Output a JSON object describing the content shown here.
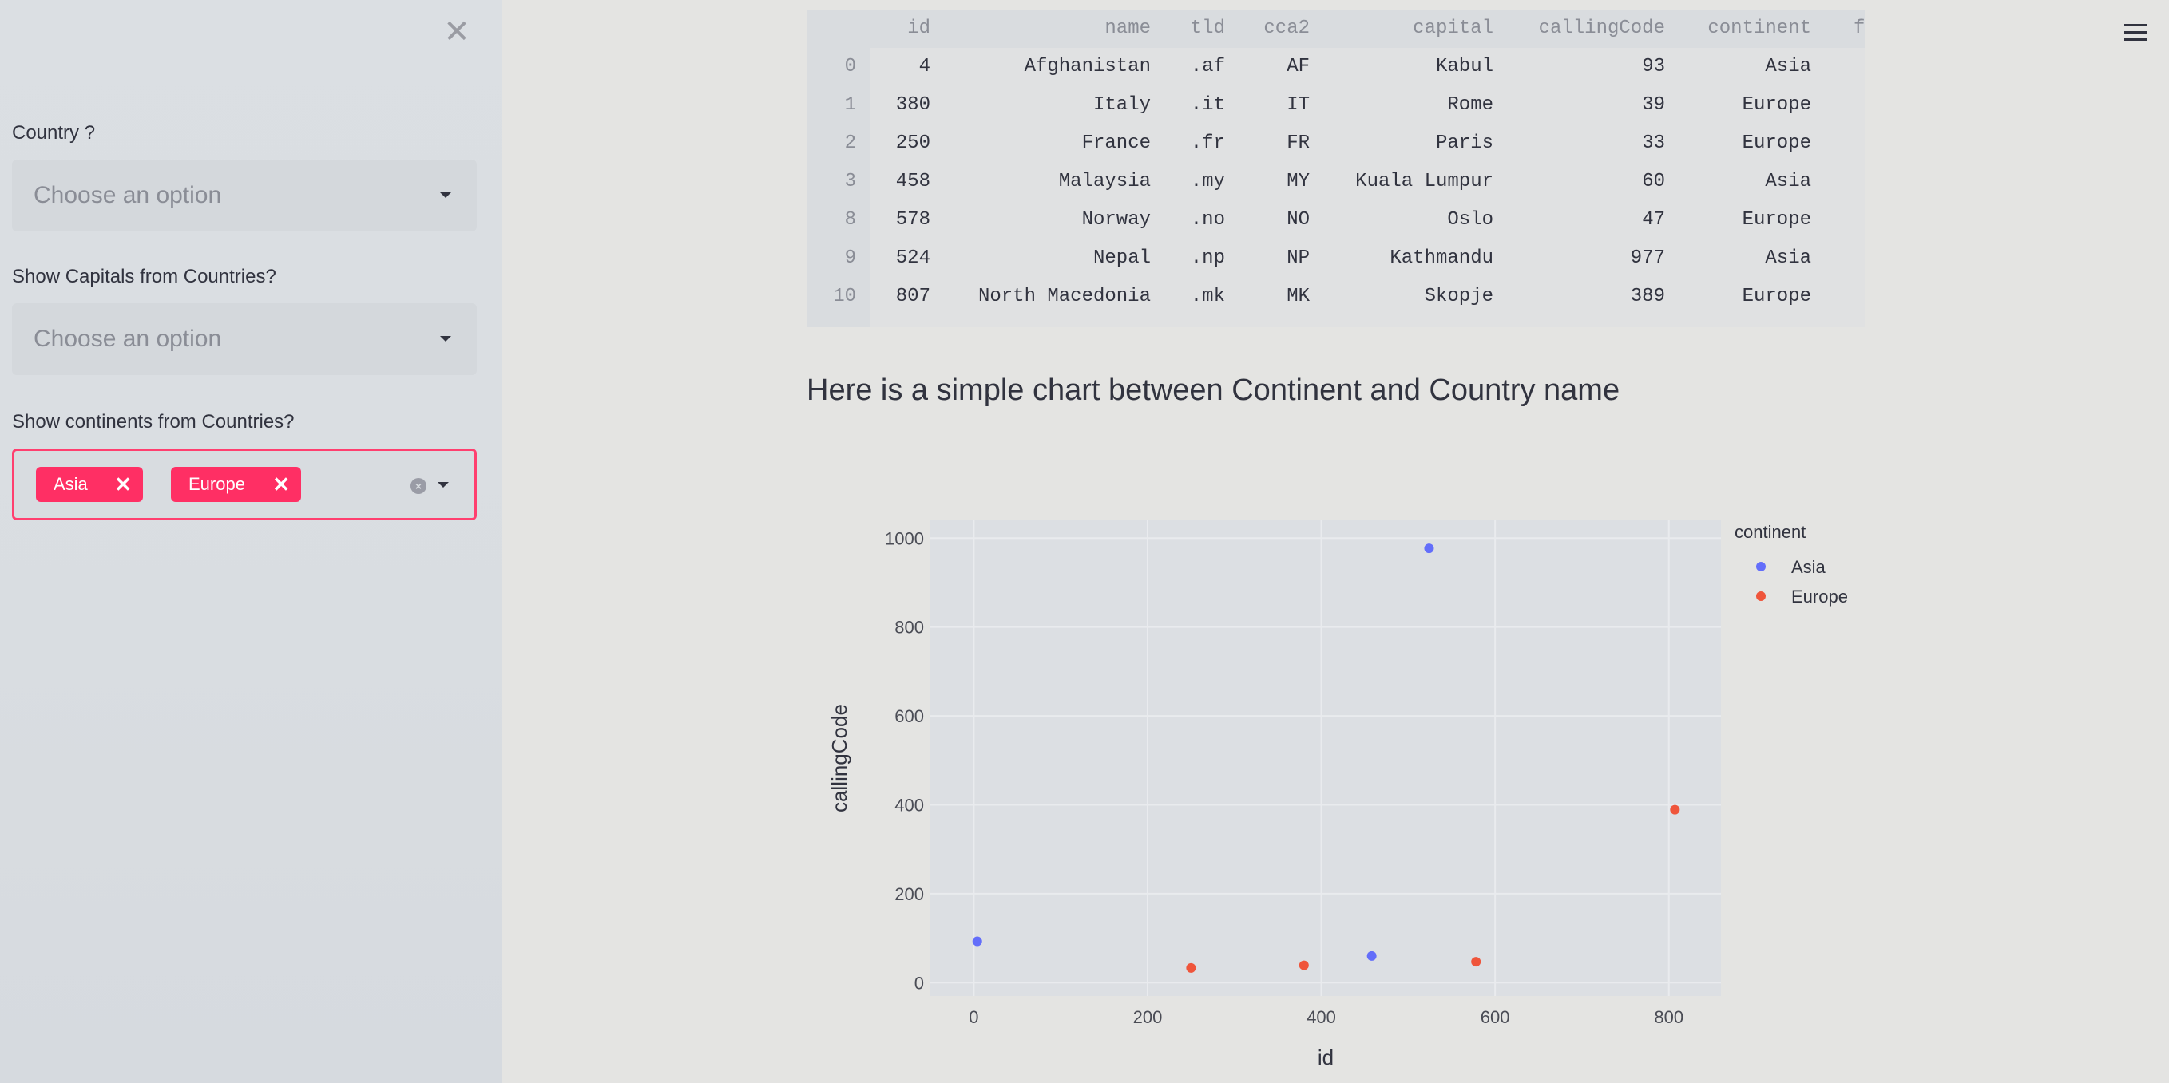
{
  "sidebar": {
    "close_icon": "✕",
    "country": {
      "label": "Country ?",
      "placeholder": "Choose an option"
    },
    "capitals": {
      "label": "Show Capitals from Countries?",
      "placeholder": "Choose an option"
    },
    "continents": {
      "label": "Show continents from Countries?",
      "selected": [
        "Asia",
        "Europe"
      ],
      "tag_remove": "✕"
    }
  },
  "menu_icon": "hamburger-menu",
  "table": {
    "columns": [
      "",
      "id",
      "name",
      "tld",
      "cca2",
      "capital",
      "callingCode",
      "continent",
      "f"
    ],
    "rows": [
      [
        "0",
        "4",
        "Afghanistan",
        ".af",
        "AF",
        "Kabul",
        "93",
        "Asia"
      ],
      [
        "1",
        "380",
        "Italy",
        ".it",
        "IT",
        "Rome",
        "39",
        "Europe"
      ],
      [
        "2",
        "250",
        "France",
        ".fr",
        "FR",
        "Paris",
        "33",
        "Europe"
      ],
      [
        "3",
        "458",
        "Malaysia",
        ".my",
        "MY",
        "Kuala Lumpur",
        "60",
        "Asia"
      ],
      [
        "8",
        "578",
        "Norway",
        ".no",
        "NO",
        "Oslo",
        "47",
        "Europe"
      ],
      [
        "9",
        "524",
        "Nepal",
        ".np",
        "NP",
        "Kathmandu",
        "977",
        "Asia"
      ],
      [
        "10",
        "807",
        "North Macedonia",
        ".mk",
        "MK",
        "Skopje",
        "389",
        "Europe"
      ]
    ]
  },
  "subheading": "Here is a simple chart between Continent and Country name",
  "chart_data": {
    "type": "scatter",
    "xlabel": "id",
    "ylabel": "callingCode",
    "legend_title": "continent",
    "legend_position": "top-right",
    "xlim": [
      -50,
      860
    ],
    "ylim": [
      -30,
      1040
    ],
    "xticks": [
      0,
      200,
      400,
      600,
      800
    ],
    "yticks": [
      0,
      200,
      400,
      600,
      800,
      1000
    ],
    "grid": true,
    "series": [
      {
        "name": "Asia",
        "color": "#636efa",
        "x": [
          4,
          458,
          524
        ],
        "y": [
          93,
          60,
          977
        ]
      },
      {
        "name": "Europe",
        "color": "#ef553b",
        "x": [
          380,
          250,
          578,
          807
        ],
        "y": [
          39,
          33,
          47,
          389
        ]
      }
    ]
  },
  "colors": {
    "accent": "#ff2f64",
    "sidebar_bg": "#dbdfe3",
    "main_bg": "#e4e4e2"
  }
}
